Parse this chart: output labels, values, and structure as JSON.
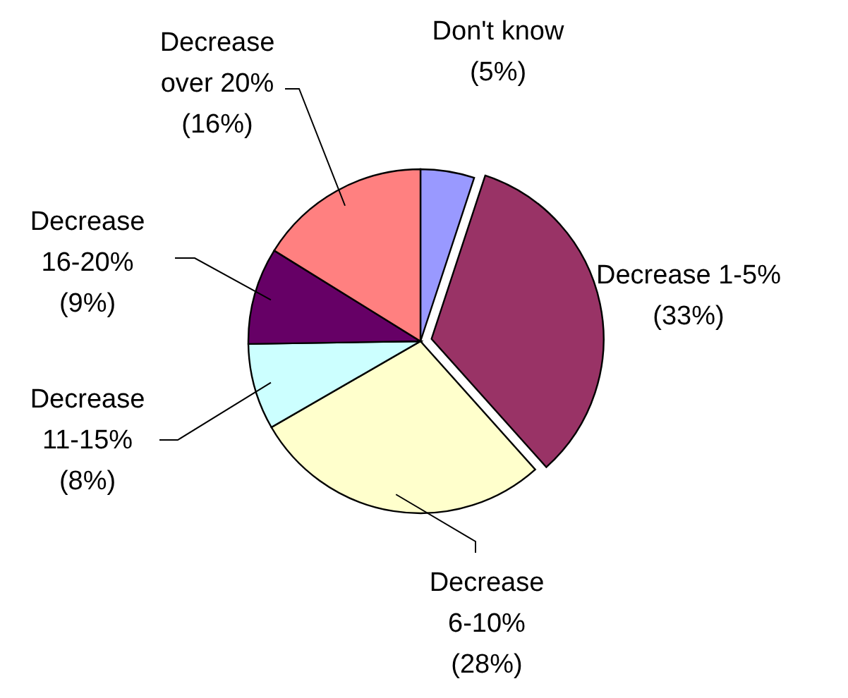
{
  "chart_data": {
    "type": "pie",
    "categories": [
      "Don't know",
      "Decrease 1-5%",
      "Decrease 6-10%",
      "Decrease 11-15%",
      "Decrease 16-20%",
      "Decrease over 20%"
    ],
    "values": [
      5,
      33,
      28,
      8,
      9,
      16
    ],
    "colors": [
      "#9999ff",
      "#993366",
      "#ffffcc",
      "#ccffff",
      "#660066",
      "#ff8080"
    ],
    "value_labels": [
      "(5%)",
      "(33%)",
      "(28%)",
      "(8%)",
      "(9%)",
      "(16%)"
    ]
  }
}
